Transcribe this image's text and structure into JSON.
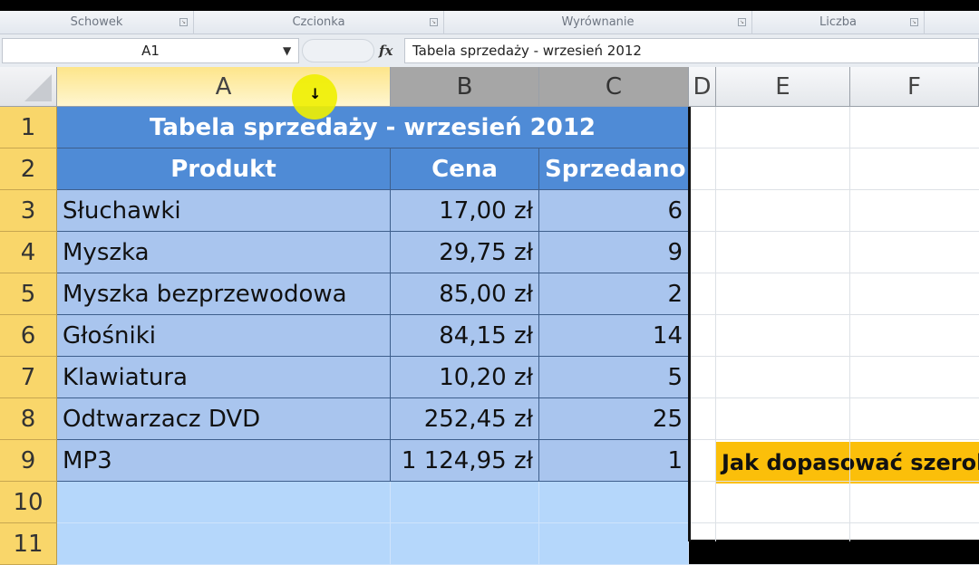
{
  "ribbon": {
    "groups": [
      "Schowek",
      "Czcionka",
      "Wyrównanie",
      "Liczba"
    ]
  },
  "formula_bar": {
    "name_box": "A1",
    "fx_label": "fx",
    "value": "Tabela sprzedaży - wrzesień 2012"
  },
  "columns": [
    "A",
    "B",
    "C",
    "D",
    "E",
    "F"
  ],
  "rows": [
    "1",
    "2",
    "3",
    "4",
    "5",
    "6",
    "7",
    "8",
    "9",
    "10",
    "11"
  ],
  "table": {
    "title": "Tabela sprzedaży - wrzesień 2012",
    "headers": [
      "Produkt",
      "Cena",
      "Sprzedano"
    ],
    "data": [
      [
        "Słuchawki",
        "17,00 zł",
        "6"
      ],
      [
        "Myszka",
        "29,75 zł",
        "9"
      ],
      [
        "Myszka bezprzewodowa",
        "85,00 zł",
        "2"
      ],
      [
        "Głośniki",
        "84,15 zł",
        "14"
      ],
      [
        "Klawiatura",
        "10,20 zł",
        "5"
      ],
      [
        "Odtwarzacz DVD",
        "252,45 zł",
        "25"
      ],
      [
        "MP3",
        "1 124,95 zł",
        "1"
      ]
    ]
  },
  "note": {
    "text": "Jak dopasować szerokość"
  },
  "colors": {
    "header_fill": "#4f8bd6",
    "data_fill": "#a9c5ee",
    "note_fill": "#fbbf0a",
    "row_header_selected": "#f9d66a"
  }
}
